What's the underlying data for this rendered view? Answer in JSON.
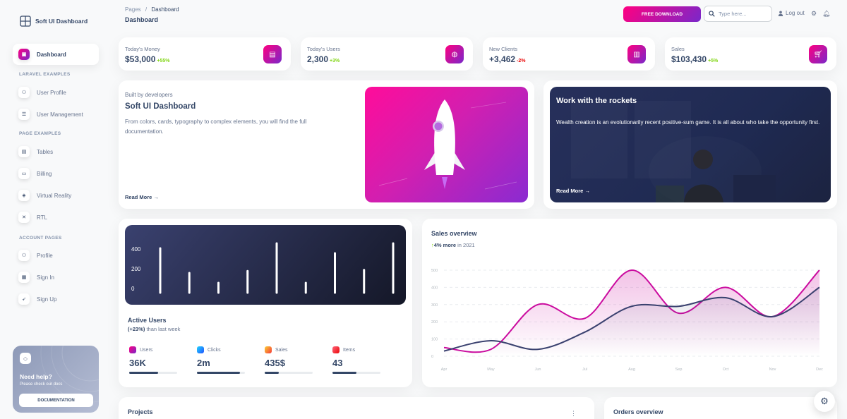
{
  "brand": {
    "name": "Soft UI Dashboard"
  },
  "sidebar": {
    "items": [
      {
        "label": "Dashboard",
        "icon": "shop-icon"
      },
      {
        "label": "User Profile",
        "icon": "user-icon"
      },
      {
        "label": "User Management",
        "icon": "list-icon"
      },
      {
        "label": "Tables",
        "icon": "table-icon"
      },
      {
        "label": "Billing",
        "icon": "credit-card-icon"
      },
      {
        "label": "Virtual Reality",
        "icon": "box-icon"
      },
      {
        "label": "RTL",
        "icon": "settings-icon"
      },
      {
        "label": "Profile",
        "icon": "user-icon"
      },
      {
        "label": "Sign In",
        "icon": "document-icon"
      },
      {
        "label": "Sign Up",
        "icon": "rocket-icon"
      }
    ],
    "sections": [
      "LARAVEL EXAMPLES",
      "PAGE EXAMPLES",
      "ACCOUNT PAGES"
    ],
    "help": {
      "title": "Need help?",
      "subtitle": "Please check our docs",
      "button": "DOCUMENTATION"
    }
  },
  "topbar": {
    "breadcrumb_root": "Pages",
    "breadcrumb_sep": "/",
    "breadcrumb_current": "Dashboard",
    "title": "Dashboard",
    "free_download": "FREE DOWNLOAD",
    "search_placeholder": "Type here...",
    "logout": "Log out"
  },
  "stats": [
    {
      "label": "Today's Money",
      "value": "$53,000",
      "change": "+55%",
      "trend": "pos"
    },
    {
      "label": "Today's Users",
      "value": "2,300",
      "change": "+3%",
      "trend": "pos"
    },
    {
      "label": "New Clients",
      "value": "+3,462",
      "change": "-2%",
      "trend": "neg"
    },
    {
      "label": "Sales",
      "value": "$103,430",
      "change": "+5%",
      "trend": "pos"
    }
  ],
  "build": {
    "subtitle": "Built by developers",
    "title": "Soft UI Dashboard",
    "description": "From colors, cards, typography to complex elements, you will find the full documentation.",
    "read_more": "Read More"
  },
  "rockets": {
    "title": "Work with the rockets",
    "description": "Wealth creation is an evolutionarily recent positive-sum game. It is all about who take the opportunity first.",
    "read_more": "Read More"
  },
  "active_users": {
    "title": "Active Users",
    "change": "(+23%)",
    "subtitle_rest": " than last week",
    "metrics": [
      {
        "label": "Users",
        "value": "36K",
        "progress": 0.6
      },
      {
        "label": "Clicks",
        "value": "2m",
        "progress": 0.9
      },
      {
        "label": "Sales",
        "value": "435$",
        "progress": 0.3
      },
      {
        "label": "Items",
        "value": "43",
        "progress": 0.5
      }
    ]
  },
  "sales_overview": {
    "title": "Sales overview",
    "change": "4% more",
    "change_rest": " in 2021"
  },
  "projects": {
    "title": "Projects"
  },
  "orders": {
    "title": "Orders overview"
  },
  "colors": {
    "primary_gradient_start": "#7928ca",
    "primary_gradient_end": "#ff0080",
    "dark": "#344767",
    "positive": "#82d616",
    "negative": "#ea0606"
  },
  "chart_data": [
    {
      "type": "bar",
      "categories": [
        "1",
        "2",
        "3",
        "4",
        "5",
        "6",
        "7",
        "8",
        "9"
      ],
      "values": [
        450,
        200,
        100,
        220,
        500,
        100,
        400,
        230,
        500
      ],
      "yticks": [
        "400",
        "200",
        "0"
      ],
      "ylim": [
        0,
        500
      ]
    },
    {
      "type": "line",
      "categories": [
        "Apr",
        "May",
        "Jun",
        "Jul",
        "Aug",
        "Sep",
        "Oct",
        "Nov",
        "Dec"
      ],
      "yticks": [
        "500",
        "400",
        "300",
        "200",
        "100",
        "0"
      ],
      "ylim": [
        0,
        500
      ],
      "series": [
        {
          "values": [
            50,
            40,
            300,
            220,
            500,
            250,
            400,
            230,
            500
          ],
          "color": "#cb0c9f"
        },
        {
          "values": [
            30,
            90,
            40,
            140,
            290,
            290,
            340,
            230,
            400
          ],
          "color": "#3a416f"
        }
      ]
    }
  ]
}
